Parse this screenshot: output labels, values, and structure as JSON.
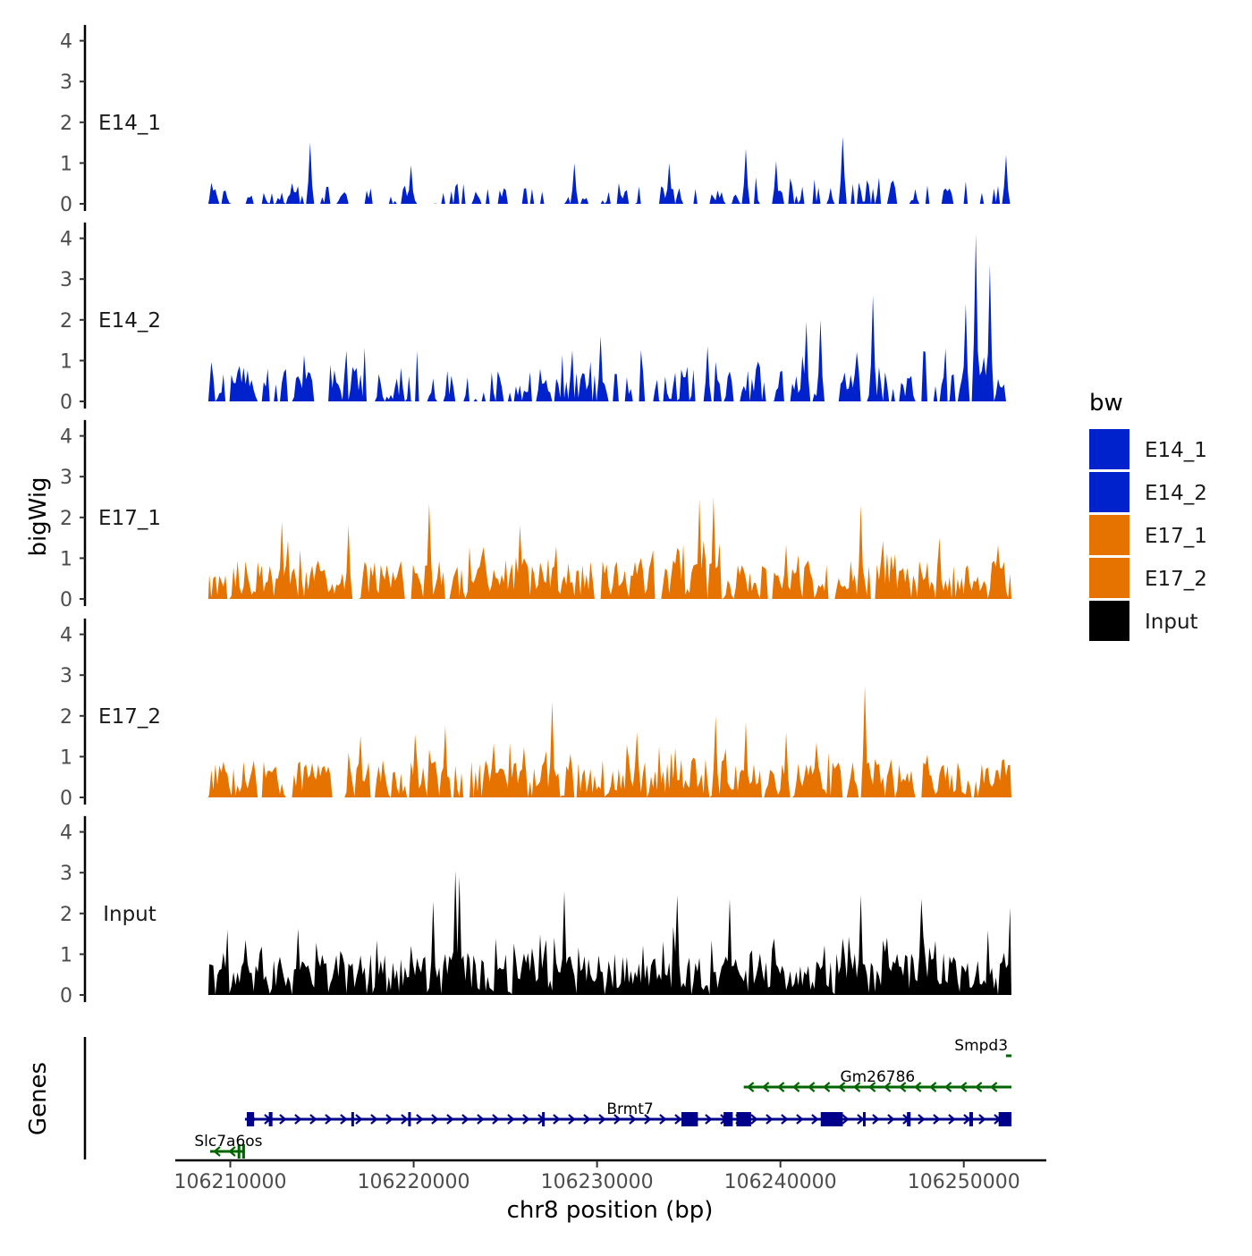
{
  "chart_data": {
    "type": "area",
    "chromosome": "chr8",
    "y_axis_label": "bigWig",
    "genes_axis_label": "Genes",
    "x_axis_label": "chr8 position (bp)",
    "xlim": [
      106207000,
      106254500
    ],
    "x_ticks": [
      106210000,
      106220000,
      106230000,
      106240000,
      106250000
    ],
    "x_tick_labels": [
      "106210000",
      "106220000",
      "106230000",
      "106240000",
      "106250000"
    ],
    "ylim": [
      0,
      4.3
    ],
    "y_ticks": [
      0,
      1,
      2,
      3,
      4
    ],
    "y_tick_labels": [
      "0",
      "1",
      "2",
      "3",
      "4"
    ],
    "signal_start": 106208800,
    "signal_end": 106252600,
    "legend": {
      "title": "bw",
      "entries": [
        {
          "label": "E14_1",
          "color": "#0022cc"
        },
        {
          "label": "E14_2",
          "color": "#0022cc"
        },
        {
          "label": "E17_1",
          "color": "#e67300"
        },
        {
          "label": "E17_2",
          "color": "#e67300"
        },
        {
          "label": "Input",
          "color": "#000000"
        }
      ]
    },
    "tracks": [
      {
        "name": "E14_1",
        "color": "#0022cc",
        "seed": 11,
        "density": 0.55,
        "base": 0.45,
        "peaks": [
          [
            106214300,
            1.5
          ],
          [
            106238100,
            1.35
          ],
          [
            106243300,
            1.65
          ],
          [
            106252200,
            1.2
          ],
          [
            106219800,
            0.95
          ],
          [
            106228700,
            1.0
          ],
          [
            106233900,
            1.0
          ],
          [
            106239700,
            1.05
          ]
        ]
      },
      {
        "name": "E14_2",
        "color": "#0022cc",
        "seed": 23,
        "density": 0.7,
        "base": 0.85,
        "peaks": [
          [
            106250600,
            4.1
          ],
          [
            106251400,
            3.35
          ],
          [
            106245000,
            2.6
          ],
          [
            106250000,
            2.4
          ],
          [
            106242100,
            2.0
          ],
          [
            106241400,
            1.95
          ],
          [
            106230100,
            1.6
          ],
          [
            106236000,
            1.35
          ]
        ]
      },
      {
        "name": "E17_1",
        "color": "#e67300",
        "seed": 37,
        "density": 0.9,
        "base": 0.95,
        "peaks": [
          [
            106235500,
            2.45
          ],
          [
            106236300,
            2.5
          ],
          [
            106220800,
            2.35
          ],
          [
            106244300,
            2.3
          ],
          [
            106212800,
            1.9
          ],
          [
            106216400,
            1.8
          ],
          [
            106225700,
            1.8
          ],
          [
            106248600,
            1.5
          ]
        ]
      },
      {
        "name": "E17_2",
        "color": "#e67300",
        "seed": 53,
        "density": 0.85,
        "base": 0.95,
        "peaks": [
          [
            106244500,
            2.75
          ],
          [
            106227500,
            2.35
          ],
          [
            106236400,
            2.0
          ],
          [
            106238100,
            1.85
          ],
          [
            106220000,
            1.55
          ],
          [
            106221700,
            1.75
          ],
          [
            106232100,
            1.6
          ],
          [
            106240300,
            1.6
          ]
        ]
      },
      {
        "name": "Input",
        "color": "#000000",
        "seed": 71,
        "density": 1.0,
        "base": 1.05,
        "peaks": [
          [
            106222200,
            3.05
          ],
          [
            106222400,
            2.9
          ],
          [
            106228200,
            2.55
          ],
          [
            106234300,
            2.45
          ],
          [
            106237200,
            2.35
          ],
          [
            106244300,
            2.45
          ],
          [
            106221000,
            2.3
          ],
          [
            106247600,
            2.35
          ],
          [
            106252500,
            2.15
          ]
        ]
      }
    ],
    "genes": [
      {
        "name": "Brmt7",
        "strand": "+",
        "color": "#00008b",
        "row": 2,
        "start": 106210800,
        "end": 106252600,
        "exons": [
          [
            106210900,
            106211300
          ],
          [
            106212100,
            106212300
          ],
          [
            106216600,
            106216700
          ],
          [
            106219700,
            106219800
          ],
          [
            106227000,
            106227100
          ],
          [
            106234600,
            106235500
          ],
          [
            106236900,
            106237400
          ],
          [
            106237600,
            106238400
          ],
          [
            106242200,
            106243400
          ],
          [
            106244500,
            106244600
          ],
          [
            106246900,
            106247100
          ],
          [
            106250300,
            106250500
          ],
          [
            106251900,
            106252600
          ]
        ]
      },
      {
        "name": "Gm26786",
        "strand": "-",
        "color": "#006400",
        "row": 1,
        "start": 106238000,
        "end": 106252600,
        "exons": []
      },
      {
        "name": "Smpd3",
        "strand": "-",
        "color": "#006400",
        "row": 0,
        "start": 106252300,
        "end": 106252600,
        "exons": []
      },
      {
        "name": "Slc7a6os",
        "strand": "-",
        "color": "#006400",
        "row": 3,
        "start": 106208900,
        "end": 106210800,
        "exons": [
          [
            106210400,
            106210500
          ],
          [
            106210650,
            106210800
          ]
        ]
      }
    ]
  }
}
